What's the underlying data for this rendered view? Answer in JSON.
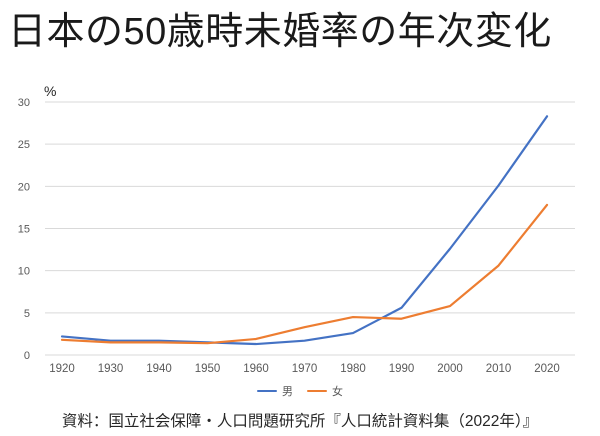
{
  "title": "日本の50歳時未婚率の年次変化",
  "caption": "資料：国立社会保障・人口問題研究所『人口統計資料集（2022年）』",
  "colors": {
    "grid": "#D9D9D9",
    "axis_text": "#595959",
    "unit_text": "#262626",
    "male_line": "#4472C4",
    "female_line": "#ED7D31"
  },
  "chart_data": {
    "type": "line",
    "title": "日本の50歳時未婚率の年次変化",
    "unit_label": "%",
    "xlabel": "",
    "ylabel": "%",
    "categories": [
      "1920",
      "1930",
      "1940",
      "1950",
      "1960",
      "1970",
      "1980",
      "1990",
      "2000",
      "2010",
      "2020"
    ],
    "series": [
      {
        "name": "男",
        "color": "#4472C4",
        "values": [
          2.2,
          1.7,
          1.7,
          1.5,
          1.3,
          1.7,
          2.6,
          5.6,
          12.6,
          20.1,
          28.3
        ]
      },
      {
        "name": "女",
        "color": "#ED7D31",
        "values": [
          1.8,
          1.5,
          1.5,
          1.4,
          1.9,
          3.3,
          4.5,
          4.3,
          5.8,
          10.6,
          17.8
        ]
      }
    ],
    "ylim": [
      0,
      30
    ],
    "ytick_step": 5,
    "yticks": [
      0,
      5,
      10,
      15,
      20,
      25,
      30
    ],
    "grid": true,
    "legend_position": "bottom"
  }
}
